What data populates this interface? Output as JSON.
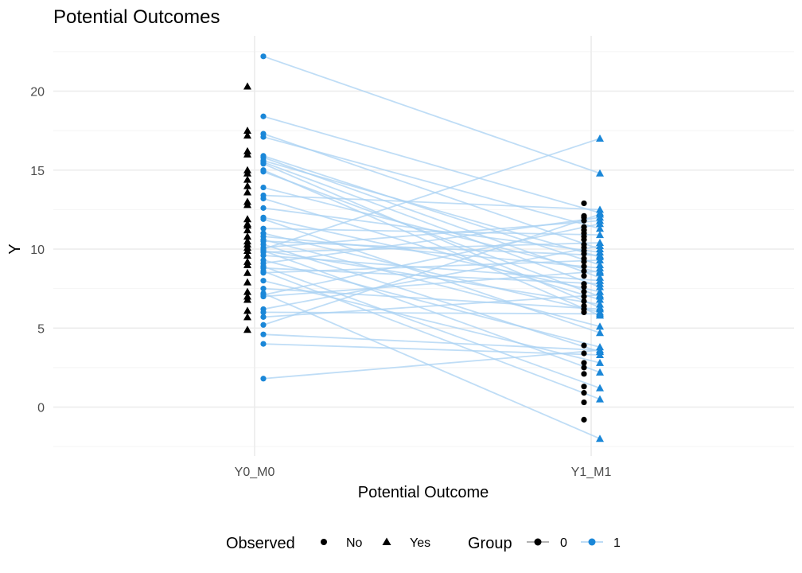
{
  "chart_data": {
    "type": "scatter",
    "title": "Potential Outcomes",
    "xlabel": "Potential Outcome",
    "ylabel": "Y",
    "categories": [
      "Y0_M0",
      "Y1_M1"
    ],
    "y_ticks": [
      0,
      5,
      10,
      15,
      20
    ],
    "ylim": [
      -2.6,
      23.0
    ],
    "grid": true,
    "legend_position": "bottom",
    "colors": {
      "group0": "#000000",
      "group1": "#1a87d8",
      "line": "#a9d1f3"
    },
    "legends": [
      {
        "title": "Observed",
        "items": [
          {
            "label": "No",
            "shape": "circle"
          },
          {
            "label": "Yes",
            "shape": "triangle"
          }
        ]
      },
      {
        "title": "Group",
        "items": [
          {
            "label": "0",
            "color": "#000000"
          },
          {
            "label": "1",
            "color": "#1a87d8"
          }
        ]
      }
    ],
    "series": [
      {
        "name": "0",
        "observed_Y0_M0": [
          20.3,
          17.5,
          17.2,
          16.2,
          16.0,
          15.0,
          14.8,
          14.4,
          14.0,
          13.6,
          13.0,
          12.8,
          11.9,
          11.6,
          11.5,
          11.2,
          10.8,
          10.5,
          10.3,
          10.1,
          9.9,
          9.6,
          9.2,
          9.0,
          8.5,
          7.9,
          7.3,
          7.0,
          6.8,
          6.1,
          5.7,
          4.9
        ],
        "unobserved_Y1_M1": [
          12.9,
          12.1,
          12.0,
          11.8,
          11.4,
          11.2,
          11.0,
          10.8,
          10.6,
          10.3,
          10.1,
          9.9,
          9.7,
          9.4,
          9.2,
          8.9,
          8.6,
          8.3,
          7.8,
          7.6,
          7.3,
          7.0,
          6.7,
          6.4,
          6.2,
          6.0,
          3.9,
          3.4,
          2.8,
          2.5,
          2.1,
          1.3,
          0.9,
          0.3,
          -0.8
        ]
      },
      {
        "name": "1",
        "pairs": [
          [
            22.2,
            14.8
          ],
          [
            18.4,
            12.3
          ],
          [
            17.3,
            10.0
          ],
          [
            17.1,
            11.3
          ],
          [
            15.9,
            9.0
          ],
          [
            15.8,
            8.2
          ],
          [
            15.6,
            9.5
          ],
          [
            15.5,
            7.6
          ],
          [
            15.4,
            6.3
          ],
          [
            15.0,
            5.8
          ],
          [
            14.9,
            7.0
          ],
          [
            13.9,
            8.5
          ],
          [
            13.4,
            12.5
          ],
          [
            13.2,
            6.8
          ],
          [
            12.6,
            9.8
          ],
          [
            12.0,
            7.3
          ],
          [
            11.9,
            4.7
          ],
          [
            11.3,
            10.9
          ],
          [
            11.0,
            6.0
          ],
          [
            10.8,
            8.8
          ],
          [
            10.6,
            5.1
          ],
          [
            10.5,
            9.6
          ],
          [
            10.3,
            3.5
          ],
          [
            10.1,
            11.8
          ],
          [
            10.0,
            17.0
          ],
          [
            9.9,
            6.5
          ],
          [
            9.9,
            2.2
          ],
          [
            9.8,
            10.4
          ],
          [
            9.6,
            8.0
          ],
          [
            9.3,
            3.8
          ],
          [
            9.1,
            12.0
          ],
          [
            8.9,
            1.2
          ],
          [
            8.8,
            7.8
          ],
          [
            8.6,
            0.5
          ],
          [
            8.5,
            9.3
          ],
          [
            8.0,
            2.8
          ],
          [
            7.5,
            6.2
          ],
          [
            7.2,
            -2.0
          ],
          [
            7.1,
            11.6
          ],
          [
            7.0,
            8.6
          ],
          [
            6.2,
            10.2
          ],
          [
            6.0,
            5.9
          ],
          [
            5.7,
            7.1
          ],
          [
            5.2,
            12.2
          ],
          [
            4.6,
            3.6
          ],
          [
            4.0,
            3.3
          ],
          [
            1.8,
            3.6
          ]
        ]
      }
    ]
  }
}
